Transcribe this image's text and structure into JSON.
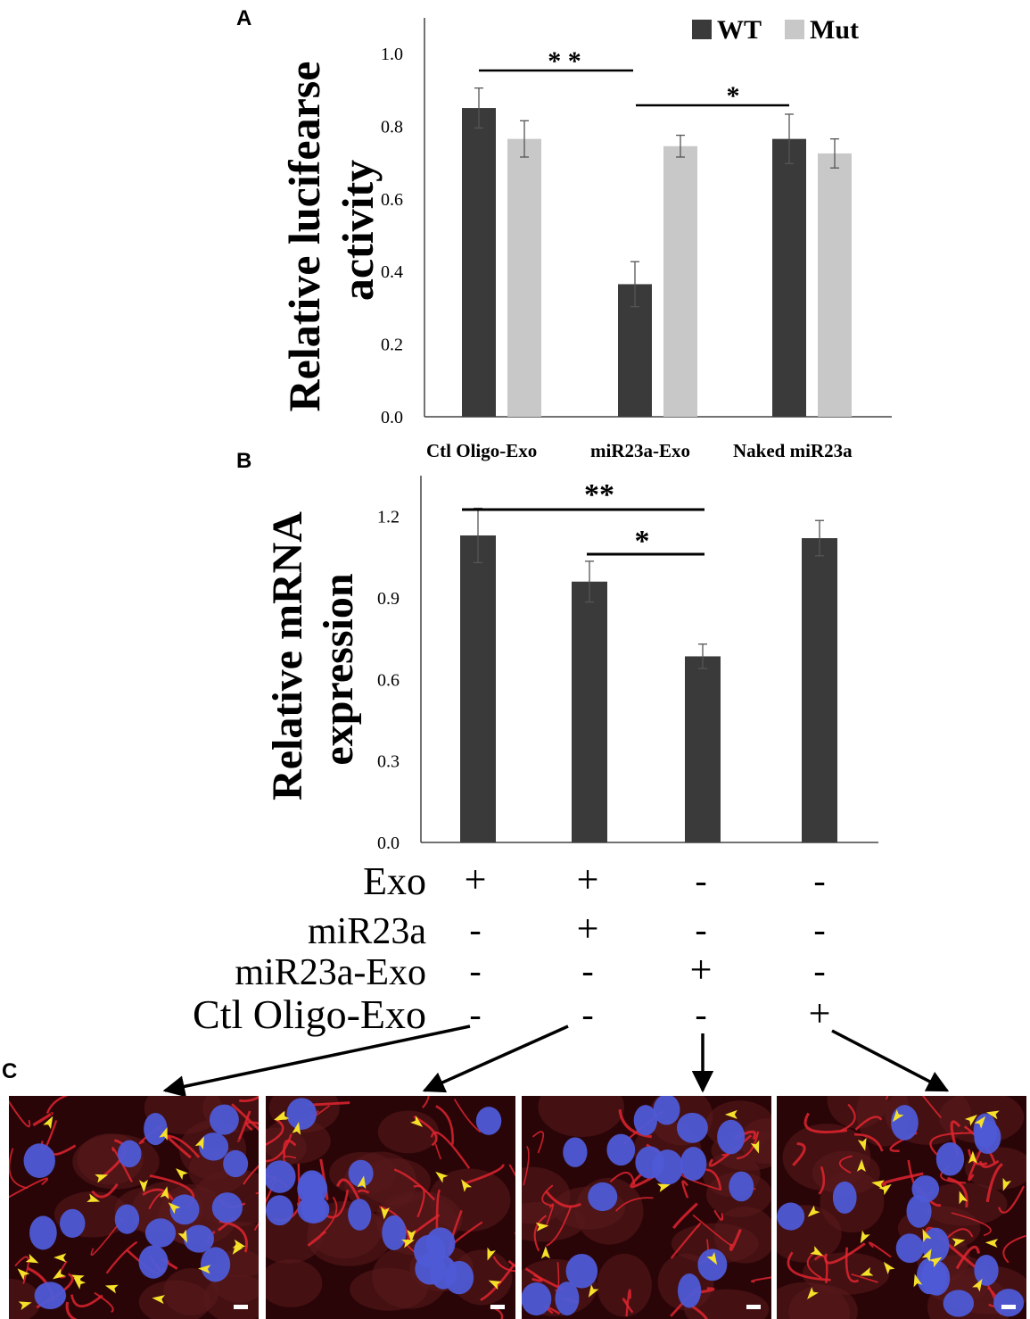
{
  "panels": {
    "A": {
      "label": "A",
      "chart_data": {
        "type": "bar",
        "ylabel_lines": [
          "Relative lucifearse",
          "activity"
        ],
        "ylim": [
          0,
          1.0
        ],
        "yticks": [
          "0.0",
          "0.2",
          "0.4",
          "0.6",
          "0.8",
          "1.0"
        ],
        "ytick_values": [
          0,
          0.2,
          0.4,
          0.6,
          0.8,
          1.0
        ],
        "categories": [
          "Ctl Oligo-Exo",
          "miR23a-Exo",
          "Naked miR23a"
        ],
        "series": [
          {
            "name": "WT",
            "color": "#3a3a3a",
            "values": [
              0.85,
              0.365,
              0.765
            ],
            "errors": [
              0.055,
              0.062,
              0.068
            ]
          },
          {
            "name": "Mut",
            "color": "#c8c8c8",
            "values": [
              0.765,
              0.745,
              0.725
            ],
            "errors": [
              0.05,
              0.03,
              0.04
            ]
          }
        ],
        "legend_placement": "top-right",
        "significance": [
          {
            "text": "* *",
            "from": "Ctl Oligo-Exo",
            "to": "miR23a-Exo"
          },
          {
            "text": "*",
            "from": "miR23a-Exo",
            "to": "Naked miR23a"
          }
        ]
      }
    },
    "B": {
      "label": "B",
      "chart_data": {
        "type": "bar",
        "ylabel_lines": [
          "Relative mRNA",
          "expression"
        ],
        "ylim": [
          0,
          1.35
        ],
        "yticks": [
          "0.0",
          "0.3",
          "0.6",
          "0.9",
          "1.2"
        ],
        "ytick_values": [
          0,
          0.3,
          0.6,
          0.9,
          1.2
        ],
        "series": [
          {
            "color": "#3a3a3a",
            "values": [
              1.13,
              0.96,
              0.685,
              1.12
            ],
            "errors": [
              0.1,
              0.075,
              0.045,
              0.065
            ]
          }
        ],
        "significance": [
          {
            "text": "**",
            "from_index": 0,
            "to_index": 2
          },
          {
            "text": "*",
            "from_index": 1,
            "to_index": 2
          }
        ]
      },
      "conditions": [
        {
          "label": "Exo",
          "marks": [
            "+",
            "+",
            "-",
            "-"
          ]
        },
        {
          "label": "miR23a",
          "marks": [
            "-",
            "+",
            "-",
            "-"
          ]
        },
        {
          "label": "miR23a-Exo",
          "marks": [
            "-",
            "-",
            "+",
            "-"
          ]
        },
        {
          "label": "Ctl Oligo-Exo",
          "marks": [
            "-",
            "-",
            "-",
            "+"
          ]
        }
      ]
    },
    "C": {
      "label": "C",
      "images": [
        {
          "name": "Exo",
          "arrowhead_count": 22
        },
        {
          "name": "Exo + miR23a",
          "arrowhead_count": 12
        },
        {
          "name": "miR23a-Exo",
          "arrowhead_count": 7
        },
        {
          "name": "Ctl Oligo-Exo",
          "arrowhead_count": 24
        }
      ],
      "colors": {
        "background": "#2a0508",
        "junction": "#e0252f",
        "nucleus": "#4e5ad6",
        "arrowhead": "#f5e02a"
      }
    }
  }
}
